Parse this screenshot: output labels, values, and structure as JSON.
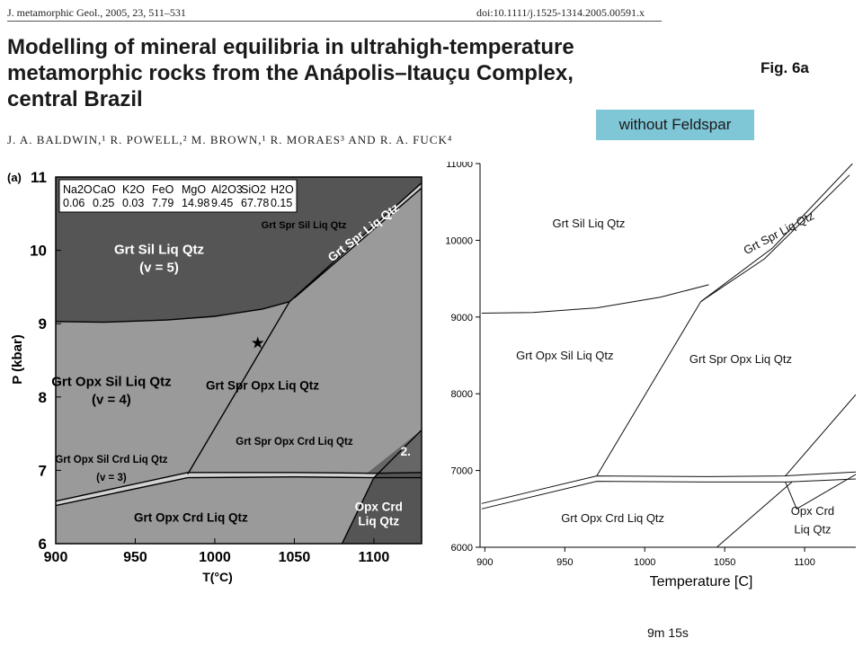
{
  "header": {
    "journal": "J. metamorphic Geol., 2005, 23, 511–531",
    "doi": "doi:10.1111/j.1525-1314.2005.00591.x",
    "title": "Modelling of mineral equilibria in ultrahigh-temperature\nmetamorphic rocks from the Anápolis–Itauçu Complex,\ncentral Brazil",
    "authors": "J. A. BALDWIN,¹ R. POWELL,² M. BROWN,¹ R. MORAES³ AND R. A. FUCK⁴",
    "fig_label": "Fig. 6a",
    "badge": "without Feldspar",
    "footer_time": "9m 15s"
  },
  "chart_data": [
    {
      "type": "line",
      "panel_label": "(a)",
      "xlabel": "T(°C)",
      "ylabel": "P (kbar)",
      "xlim": [
        900,
        1130
      ],
      "ylim": [
        6,
        11
      ],
      "x_ticks": [
        900,
        950,
        1000,
        1050,
        1100
      ],
      "y_ticks": [
        6,
        7,
        8,
        9,
        10,
        11
      ],
      "composition": {
        "headers": [
          "Na2O",
          "CaO",
          "K2O",
          "FeO",
          "MgO",
          "Al2O3",
          "SiO2",
          "H2O"
        ],
        "values": [
          "0.06",
          "0.25",
          "0.03",
          "7.79",
          "14.98",
          "9.45",
          "67.78",
          "0.15"
        ]
      },
      "field_labels": [
        {
          "text": "Grt Sil Liq Qtz",
          "sub": "(v = 5)",
          "x": 965,
          "y": 9.95
        },
        {
          "text": "Grt Opx Sil Liq Qtz",
          "sub": "(v = 4)",
          "x": 935,
          "y": 8.15
        },
        {
          "text": "Grt Spr Opx Liq Qtz",
          "x": 1030,
          "y": 8.1
        },
        {
          "text": "Grt Opx Sil Crd Liq Qtz",
          "sub": "(v = 3)",
          "x": 935,
          "y": 7.1
        },
        {
          "text": "Grt Spr Opx Crd Liq Qtz",
          "x": 1050,
          "y": 7.35
        },
        {
          "text": "Grt Opx Crd Liq Qtz",
          "x": 985,
          "y": 6.3
        },
        {
          "text": "Opx Crd",
          "x": 1103,
          "y": 6.45
        },
        {
          "text": "Liq Qtz",
          "x": 1103,
          "y": 6.25
        },
        {
          "text": "Grt Spr Sil Liq Qtz",
          "x": 1056,
          "y": 10.3
        },
        {
          "text": "Grt Spr Liq Qtz",
          "x": 1095,
          "y": 10.2
        },
        {
          "text": "2.",
          "x": 1120,
          "y": 7.2
        }
      ],
      "star": {
        "x": 1027,
        "y": 8.74
      },
      "boundaries": [
        {
          "name": "sil-out",
          "points": [
            [
              900,
              9.03
            ],
            [
              930,
              9.02
            ],
            [
              970,
              9.05
            ],
            [
              1000,
              9.1
            ],
            [
              1030,
              9.2
            ],
            [
              1047,
              9.3
            ]
          ]
        },
        {
          "name": "opx-in",
          "points": [
            [
              983,
              6.95
            ],
            [
              1047,
              9.3
            ]
          ]
        },
        {
          "name": "spr-sil-1",
          "points": [
            [
              1047,
              9.3
            ],
            [
              1130,
              10.92
            ]
          ]
        },
        {
          "name": "spr-sil-2",
          "points": [
            [
              1050,
              9.35
            ],
            [
              1130,
              10.85
            ]
          ]
        },
        {
          "name": "crd-in-upper",
          "points": [
            [
              900,
              6.58
            ],
            [
              983,
              6.97
            ],
            [
              1050,
              6.97
            ],
            [
              1100,
              6.96
            ],
            [
              1130,
              6.97
            ]
          ]
        },
        {
          "name": "crd-in-lower",
          "points": [
            [
              900,
              6.52
            ],
            [
              983,
              6.9
            ],
            [
              1050,
              6.91
            ],
            [
              1100,
              6.9
            ],
            [
              1130,
              6.9
            ]
          ]
        },
        {
          "name": "grt-out",
          "points": [
            [
              1080,
              6.0
            ],
            [
              1100,
              6.9
            ],
            [
              1130,
              7.55
            ]
          ]
        }
      ]
    },
    {
      "type": "line",
      "xlabel": "Temperature [C]",
      "ylabel": "",
      "xlim": [
        897,
        1132
      ],
      "ylim": [
        6000,
        11000
      ],
      "x_ticks": [
        900,
        950,
        1000,
        1050,
        1100
      ],
      "y_ticks": [
        6000,
        7000,
        8000,
        9000,
        10000,
        11000
      ],
      "field_labels": [
        {
          "text": "Grt Sil Liq Qtz",
          "x": 965,
          "y": 10170
        },
        {
          "text": "Grt Spr Liq Qtz",
          "x": 1085,
          "y": 10050
        },
        {
          "text": "Grt Opx Sil Liq Qtz",
          "x": 950,
          "y": 8450
        },
        {
          "text": "Grt Spr Opx Liq Qtz",
          "x": 1060,
          "y": 8400
        },
        {
          "text": "Grt Opx Crd Liq Qtz",
          "x": 980,
          "y": 6330
        },
        {
          "text": "Opx Crd",
          "x": 1105,
          "y": 6420
        },
        {
          "text": "Liq Qtz",
          "x": 1105,
          "y": 6180
        }
      ],
      "boundaries": [
        {
          "name": "sil-out",
          "points": [
            [
              898,
              9050
            ],
            [
              930,
              9060
            ],
            [
              970,
              9120
            ],
            [
              1010,
              9260
            ],
            [
              1040,
              9420
            ]
          ]
        },
        {
          "name": "opx-in",
          "points": [
            [
              970,
              6930
            ],
            [
              1035,
              9200
            ]
          ]
        },
        {
          "name": "spr-1",
          "points": [
            [
              1035,
              9200
            ],
            [
              1075,
              9760
            ],
            [
              1128,
              10850
            ]
          ]
        },
        {
          "name": "spr-2",
          "points": [
            [
              1035,
              9200
            ],
            [
              1080,
              9900
            ],
            [
              1130,
              11000
            ]
          ]
        },
        {
          "name": "crd-upper",
          "points": [
            [
              898,
              6570
            ],
            [
              970,
              6930
            ],
            [
              1040,
              6920
            ],
            [
              1087,
              6930
            ],
            [
              1132,
              6980
            ]
          ]
        },
        {
          "name": "crd-lower",
          "points": [
            [
              898,
              6500
            ],
            [
              970,
              6860
            ],
            [
              1040,
              6850
            ],
            [
              1088,
              6850
            ],
            [
              1132,
              6890
            ]
          ]
        },
        {
          "name": "grt-out-1",
          "points": [
            [
              1045,
              6000
            ],
            [
              1092,
              6850
            ]
          ]
        },
        {
          "name": "grt-out-2",
          "points": [
            [
              1088,
              6930
            ],
            [
              1132,
              7990
            ]
          ]
        },
        {
          "name": "grt-out-3",
          "points": [
            [
              1088,
              6850
            ],
            [
              1095,
              6500
            ],
            [
              1132,
              6950
            ]
          ]
        }
      ]
    }
  ]
}
